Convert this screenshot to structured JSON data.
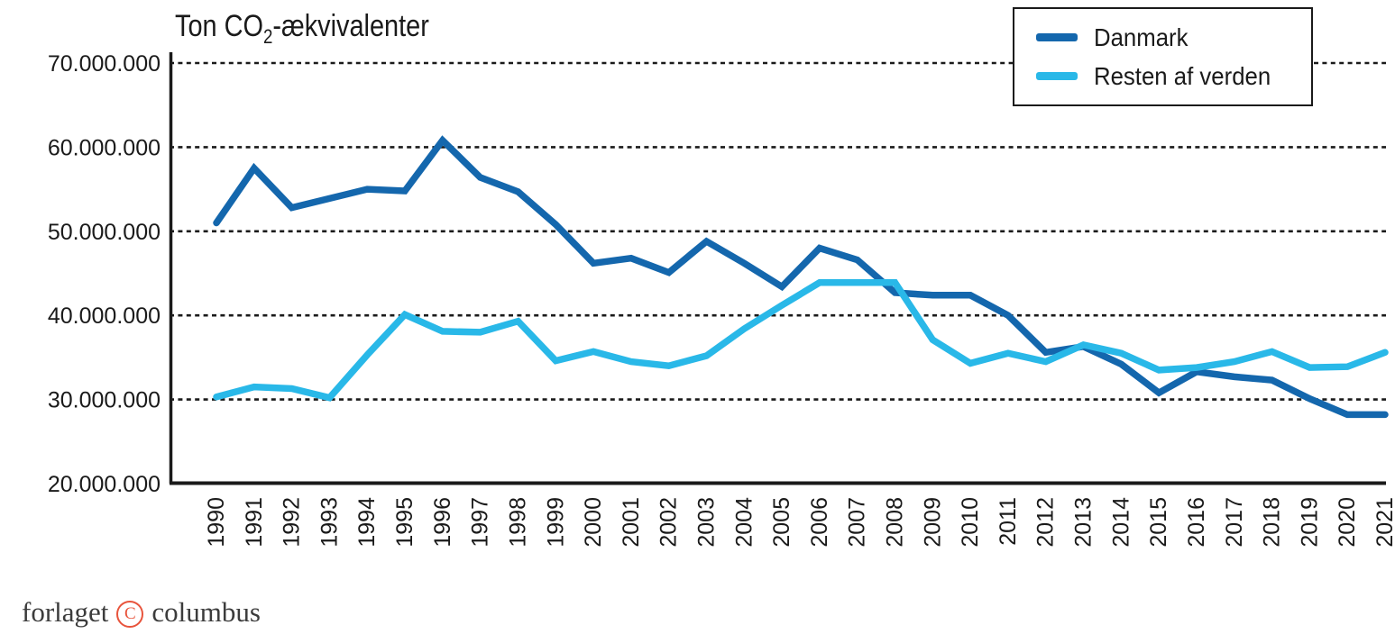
{
  "title": {
    "pre": "Ton CO",
    "sub": "2",
    "post": "-ækvivalenter"
  },
  "legend": {
    "items": [
      {
        "label": "Danmark",
        "color": "#1467ad"
      },
      {
        "label": "Resten af verden",
        "color": "#29b8e8"
      }
    ]
  },
  "footer": {
    "text_left": "forlaget",
    "symbol": "C",
    "text_right": "columbus",
    "symbol_color": "#e8543c"
  },
  "colors": {
    "danmark_line": "#1467ad",
    "resten_line": "#29b8e8",
    "axis": "#1a1a1a",
    "grid": "#1a1a1a",
    "text": "#1a1a1a"
  },
  "chart_data": {
    "type": "line",
    "title": "Ton CO2-ækvivalenter",
    "xlabel": "",
    "ylabel": "Ton CO2-ækvivalenter",
    "x": [
      "1990",
      "1991",
      "1992",
      "1993",
      "1994",
      "1995",
      "1996",
      "1997",
      "1998",
      "1999",
      "2000",
      "2001",
      "2002",
      "2003",
      "2004",
      "2005",
      "2006",
      "2007",
      "2008",
      "2009",
      "2010",
      "2011",
      "2012",
      "2013",
      "2014",
      "2015",
      "2016",
      "2017",
      "2018",
      "2019",
      "2020",
      "2021"
    ],
    "series": [
      {
        "name": "Danmark",
        "color": "#1467ad",
        "values": [
          51000000,
          57500000,
          52800000,
          53900000,
          55000000,
          54800000,
          60800000,
          56400000,
          54700000,
          50800000,
          46200000,
          46800000,
          45100000,
          48800000,
          46200000,
          43400000,
          48000000,
          46600000,
          42700000,
          42400000,
          42400000,
          40000000,
          35600000,
          36300000,
          34200000,
          30800000,
          33300000,
          32700000,
          32300000,
          30100000,
          28200000,
          28200000
        ]
      },
      {
        "name": "Resten af verden",
        "color": "#29b8e8",
        "values": [
          30300000,
          31500000,
          31300000,
          30200000,
          35300000,
          40100000,
          38100000,
          38000000,
          39300000,
          34600000,
          35700000,
          34500000,
          34000000,
          35200000,
          38400000,
          41200000,
          43900000,
          43900000,
          43900000,
          37100000,
          34300000,
          35500000,
          34500000,
          36500000,
          35500000,
          33500000,
          33800000,
          34500000,
          35700000,
          33800000,
          33900000,
          35600000
        ]
      }
    ],
    "ylim": [
      20000000,
      70000000
    ],
    "y_ticks": {
      "values": [
        70000000,
        60000000,
        50000000,
        40000000,
        30000000,
        20000000
      ],
      "labels": [
        "70.000.000",
        "60.000.000",
        "50.000.000",
        "40.000.000",
        "30.000.000",
        "20.000.000"
      ]
    },
    "grid": "horizontal-dashed",
    "legend_position": "top-right"
  }
}
